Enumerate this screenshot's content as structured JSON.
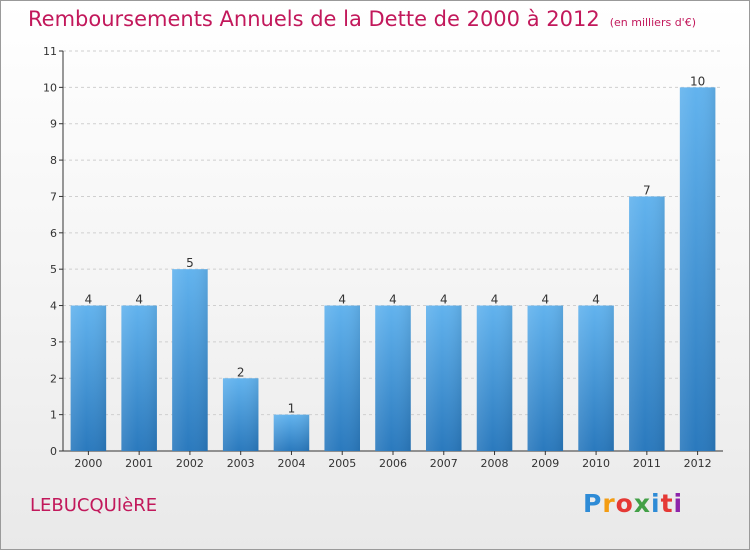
{
  "header": {
    "title": "Remboursements Annuels de la Dette de 2000 à 2012",
    "unit": "(en milliers d'€)"
  },
  "footer": {
    "commune": "LEBUCQUIèRE",
    "brand": [
      "P",
      "r",
      "o",
      "x",
      "i",
      "t",
      "i"
    ],
    "brand_colors": [
      "#2e8bd6",
      "#f39c12",
      "#e53935",
      "#43a047",
      "#2e8bd6",
      "#e53935",
      "#8e24aa"
    ]
  },
  "colors": {
    "bar_top": "#62b3ee",
    "bar_bottom": "#2a79bd",
    "axis": "#333333",
    "grid": "#cfcfcf",
    "title": "#c2185b"
  },
  "chart_data": {
    "type": "bar",
    "categories": [
      "2000",
      "2001",
      "2002",
      "2003",
      "2004",
      "2005",
      "2006",
      "2007",
      "2008",
      "2009",
      "2010",
      "2011",
      "2012"
    ],
    "values": [
      4,
      4,
      5,
      2,
      1,
      4,
      4,
      4,
      4,
      4,
      4,
      7,
      10
    ],
    "yticks": [
      0,
      1,
      2,
      3,
      4,
      5,
      6,
      7,
      8,
      9,
      10,
      11
    ],
    "ylim": [
      0,
      11
    ],
    "xlabel": "",
    "ylabel": "",
    "grid": true
  }
}
